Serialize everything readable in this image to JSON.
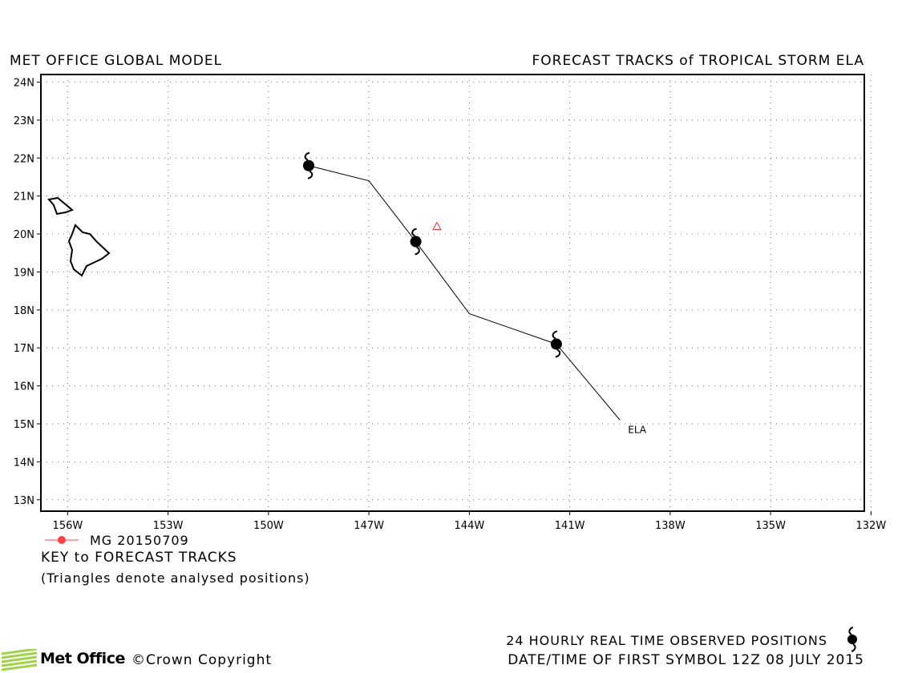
{
  "header": {
    "left_title": "MET OFFICE GLOBAL MODEL",
    "right_title": "FORECAST TRACKS of TROPICAL STORM ELA"
  },
  "chart_data": {
    "type": "map-track",
    "x_axis": {
      "ticks": [
        "156W",
        "153W",
        "150W",
        "147W",
        "144W",
        "141W",
        "138W",
        "135W",
        "132W"
      ],
      "range_deg_west": [
        156.8,
        132.2
      ]
    },
    "y_axis": {
      "ticks": [
        "24N",
        "23N",
        "22N",
        "21N",
        "20N",
        "19N",
        "18N",
        "17N",
        "16N",
        "15N",
        "14N",
        "13N"
      ],
      "range_deg_north": [
        12.7,
        24.2
      ]
    },
    "grid": "dotted",
    "storm_label": "ELA",
    "forecast_track": [
      {
        "lon_w": 139.5,
        "lat_n": 15.1
      },
      {
        "lon_w": 141.4,
        "lat_n": 17.1
      },
      {
        "lon_w": 144.0,
        "lat_n": 17.9
      },
      {
        "lon_w": 145.6,
        "lat_n": 19.8
      },
      {
        "lon_w": 147.0,
        "lat_n": 21.4
      },
      {
        "lon_w": 148.8,
        "lat_n": 21.8
      }
    ],
    "symbol_positions": [
      {
        "lon_w": 141.4,
        "lat_n": 17.1
      },
      {
        "lon_w": 145.6,
        "lat_n": 19.8
      },
      {
        "lon_w": 148.8,
        "lat_n": 21.8
      }
    ],
    "analysed_positions": [
      {
        "lon_w": 144.97,
        "lat_n": 20.2
      }
    ],
    "colors": {
      "track": "#000000",
      "analysed_triangle": "#e03030",
      "legend_line": "#ff4040"
    }
  },
  "legend": {
    "run_label": "MG 20150709",
    "key_label": "KEY to FORECAST TRACKS",
    "note": "(Triangles denote analysed positions)"
  },
  "footer": {
    "observed_text": "24 HOURLY REAL TIME OBSERVED POSITIONS",
    "date_text": "DATE/TIME OF FIRST SYMBOL 12Z 08 JULY 2015",
    "logo_text": "Met Office",
    "copyright": "©Crown Copyright"
  }
}
